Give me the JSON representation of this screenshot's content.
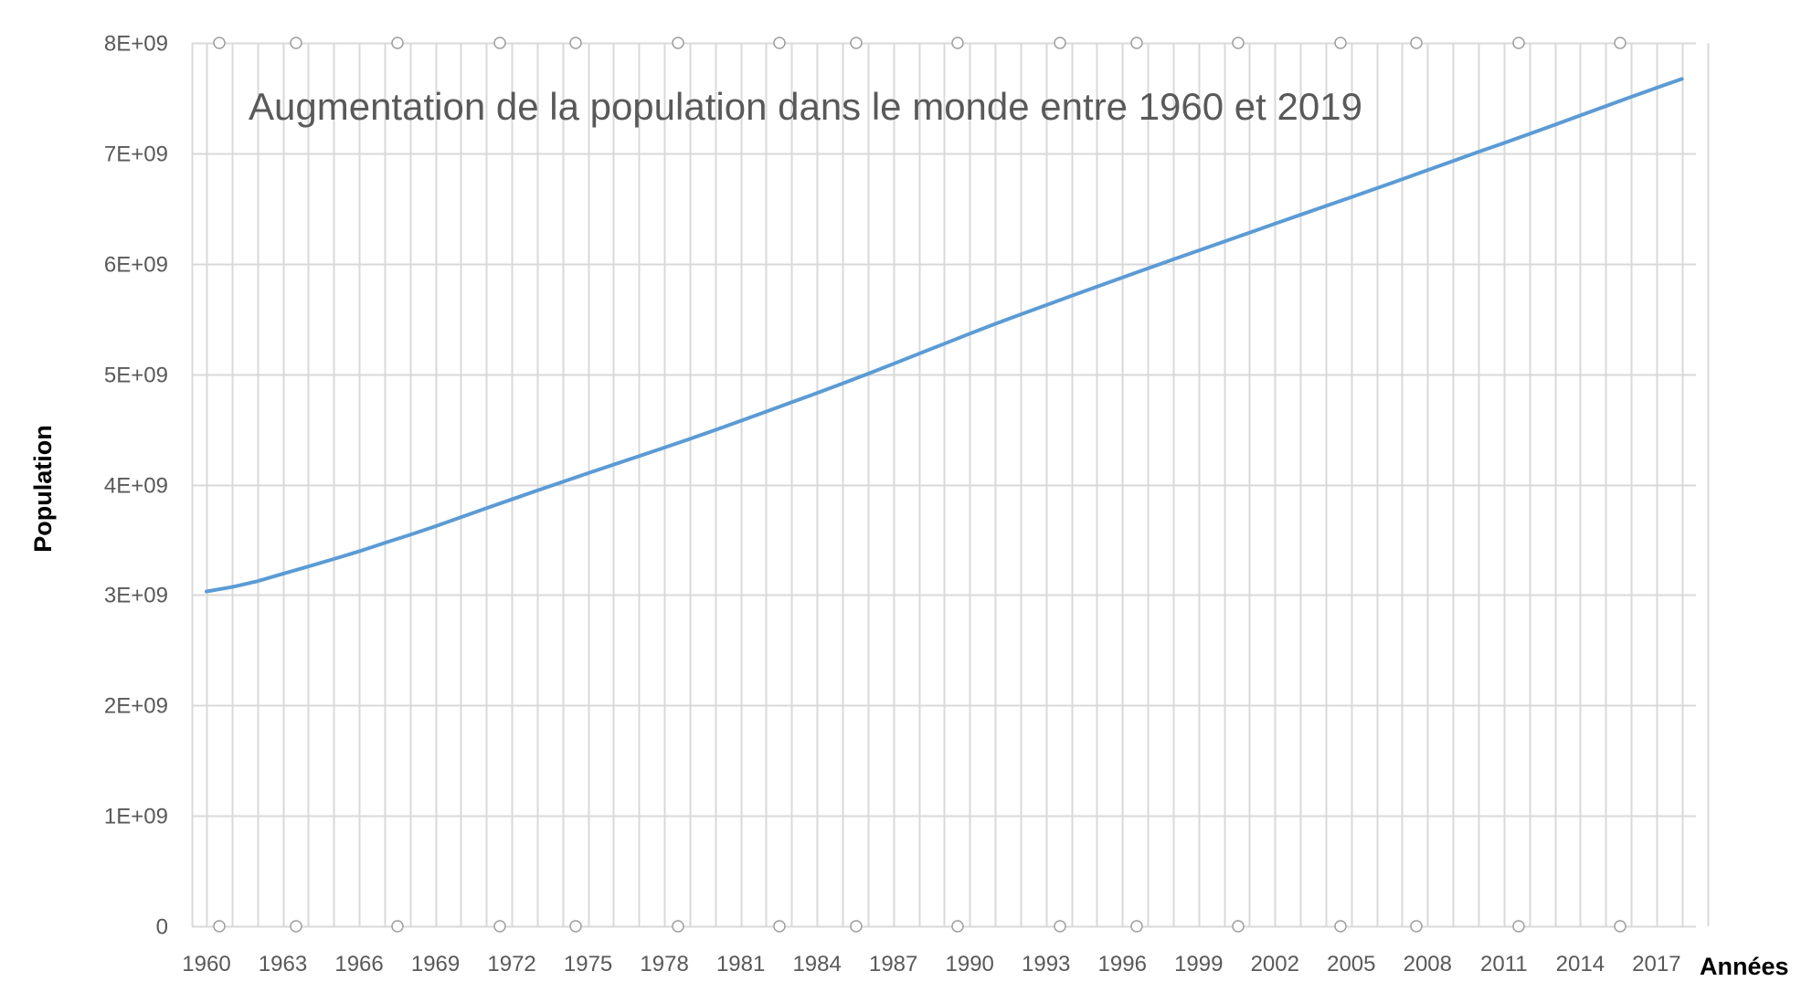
{
  "chart_data": {
    "type": "line",
    "title": "Augmentation de la population dans le monde entre 1960 et 2019",
    "xlabel": "Années",
    "ylabel": "Population",
    "x": [
      1960,
      1961,
      1962,
      1963,
      1964,
      1965,
      1966,
      1967,
      1968,
      1969,
      1970,
      1971,
      1972,
      1973,
      1974,
      1975,
      1976,
      1977,
      1978,
      1979,
      1980,
      1981,
      1982,
      1983,
      1984,
      1985,
      1986,
      1987,
      1988,
      1989,
      1990,
      1991,
      1992,
      1993,
      1994,
      1995,
      1996,
      1997,
      1998,
      1999,
      2000,
      2001,
      2002,
      2003,
      2004,
      2005,
      2006,
      2007,
      2008,
      2009,
      2010,
      2011,
      2012,
      2013,
      2014,
      2015,
      2016,
      2017,
      2018
    ],
    "series": [
      {
        "name": "Population",
        "color": "#5b9bd5",
        "values": [
          3032000000,
          3072000000,
          3125000000,
          3192000000,
          3258000000,
          3326000000,
          3395000000,
          3471000000,
          3545000000,
          3623000000,
          3704000000,
          3786000000,
          3866000000,
          3946000000,
          4025000000,
          4103000000,
          4180000000,
          4257000000,
          4335000000,
          4414000000,
          4495000000,
          4577000000,
          4661000000,
          4745000000,
          4829000000,
          4915000000,
          5003000000,
          5094000000,
          5185000000,
          5276000000,
          5367000000,
          5455000000,
          5541000000,
          5625000000,
          5709000000,
          5792000000,
          5875000000,
          5957000000,
          6039000000,
          6120000000,
          6201000000,
          6282000000,
          6363000000,
          6443000000,
          6523000000,
          6603000000,
          6684000000,
          6765000000,
          6848000000,
          6931000000,
          7013000000,
          7093000000,
          7176000000,
          7259000000,
          7343000000,
          7427000000,
          7511000000,
          7594000000,
          7674000000
        ]
      }
    ],
    "x_tick_labels": [
      "1960",
      "1963",
      "1966",
      "1969",
      "1972",
      "1975",
      "1978",
      "1981",
      "1984",
      "1987",
      "1990",
      "1993",
      "1996",
      "1999",
      "2002",
      "2005",
      "2008",
      "2011",
      "2014",
      "2017"
    ],
    "y_tick_labels": [
      "0",
      "1E+09",
      "2E+09",
      "3E+09",
      "4E+09",
      "5E+09",
      "6E+09",
      "7E+09",
      "8E+09"
    ],
    "xlim": [
      1960,
      2018
    ],
    "ylim": [
      0,
      8000000000
    ],
    "grid": true,
    "legend": "none"
  }
}
